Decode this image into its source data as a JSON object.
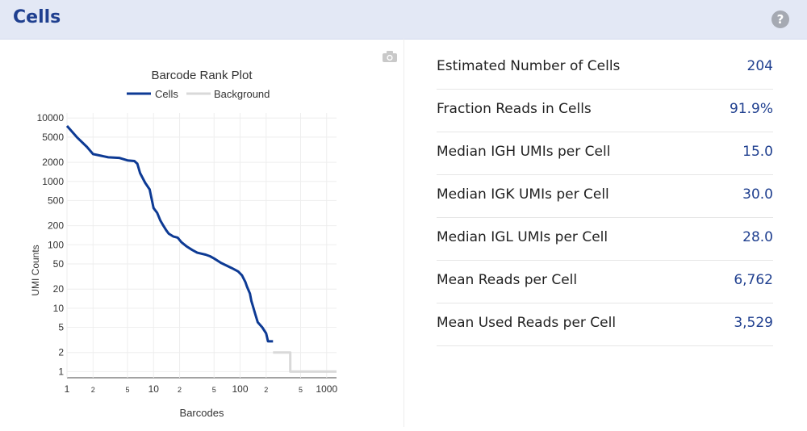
{
  "header": {
    "title": "Cells",
    "help_icon": "question-circle-icon",
    "help_glyph": "?"
  },
  "toolbar": {
    "camera_icon": "camera-icon"
  },
  "metrics": [
    {
      "label": "Estimated Number of Cells",
      "value": "204"
    },
    {
      "label": "Fraction Reads in Cells",
      "value": "91.9%"
    },
    {
      "label": "Median IGH UMIs per Cell",
      "value": "15.0"
    },
    {
      "label": "Median IGK UMIs per Cell",
      "value": "30.0"
    },
    {
      "label": "Median IGL UMIs per Cell",
      "value": "28.0"
    },
    {
      "label": "Mean Reads per Cell",
      "value": "6,762"
    },
    {
      "label": "Mean Used Reads per Cell",
      "value": "3,529"
    }
  ],
  "colors": {
    "cells": "#0d3a94",
    "background": "#d9d9d9",
    "header_bg": "#e3e8f5",
    "title": "#1f3f8f"
  },
  "chart_data": {
    "type": "line",
    "title": "Barcode Rank Plot",
    "xlabel": "Barcodes",
    "ylabel": "UMI Counts",
    "xscale": "log",
    "yscale": "log",
    "xlim": [
      1,
      1300
    ],
    "ylim": [
      0.8,
      12000
    ],
    "grid": true,
    "legend_position": "top-center",
    "x_ticks": [
      {
        "v": 1,
        "t": "1",
        "major": true
      },
      {
        "v": 2,
        "t": "2",
        "major": false
      },
      {
        "v": 5,
        "t": "5",
        "major": false
      },
      {
        "v": 10,
        "t": "10",
        "major": true
      },
      {
        "v": 20,
        "t": "2",
        "major": false
      },
      {
        "v": 50,
        "t": "5",
        "major": false
      },
      {
        "v": 100,
        "t": "100",
        "major": true
      },
      {
        "v": 200,
        "t": "2",
        "major": false
      },
      {
        "v": 500,
        "t": "5",
        "major": false
      },
      {
        "v": 1000,
        "t": "1000",
        "major": true
      }
    ],
    "y_ticks": [
      {
        "v": 1,
        "t": "1"
      },
      {
        "v": 2,
        "t": "2"
      },
      {
        "v": 5,
        "t": "5"
      },
      {
        "v": 10,
        "t": "10"
      },
      {
        "v": 20,
        "t": "20"
      },
      {
        "v": 50,
        "t": "50"
      },
      {
        "v": 100,
        "t": "100"
      },
      {
        "v": 200,
        "t": "200"
      },
      {
        "v": 500,
        "t": "500"
      },
      {
        "v": 1000,
        "t": "1000"
      },
      {
        "v": 2000,
        "t": "2000"
      },
      {
        "v": 5000,
        "t": "5000"
      },
      {
        "v": 10000,
        "t": "10000"
      }
    ],
    "series": [
      {
        "name": "Cells",
        "points": [
          [
            1,
            7500
          ],
          [
            1.3,
            5000
          ],
          [
            1.7,
            3500
          ],
          [
            2,
            2700
          ],
          [
            3,
            2400
          ],
          [
            4,
            2350
          ],
          [
            5,
            2150
          ],
          [
            6,
            2100
          ],
          [
            6.5,
            1900
          ],
          [
            7,
            1350
          ],
          [
            8,
            950
          ],
          [
            9,
            750
          ],
          [
            10,
            380
          ],
          [
            11,
            320
          ],
          [
            12,
            240
          ],
          [
            13,
            200
          ],
          [
            14,
            170
          ],
          [
            15,
            150
          ],
          [
            17,
            135
          ],
          [
            19,
            130
          ],
          [
            21,
            110
          ],
          [
            24,
            95
          ],
          [
            28,
            83
          ],
          [
            32,
            75
          ],
          [
            40,
            70
          ],
          [
            45,
            66
          ],
          [
            50,
            61
          ],
          [
            60,
            52
          ],
          [
            70,
            47
          ],
          [
            80,
            43
          ],
          [
            95,
            38
          ],
          [
            105,
            33
          ],
          [
            115,
            26
          ],
          [
            120,
            22
          ],
          [
            130,
            17
          ],
          [
            135,
            13
          ],
          [
            140,
            11
          ],
          [
            150,
            8
          ],
          [
            160,
            6
          ],
          [
            180,
            5
          ],
          [
            200,
            4
          ],
          [
            210,
            3
          ],
          [
            240,
            3
          ]
        ]
      },
      {
        "name": "Background",
        "points": [
          [
            240,
            2
          ],
          [
            380,
            2
          ],
          [
            380,
            1
          ],
          [
            1300,
            1
          ]
        ]
      }
    ]
  }
}
